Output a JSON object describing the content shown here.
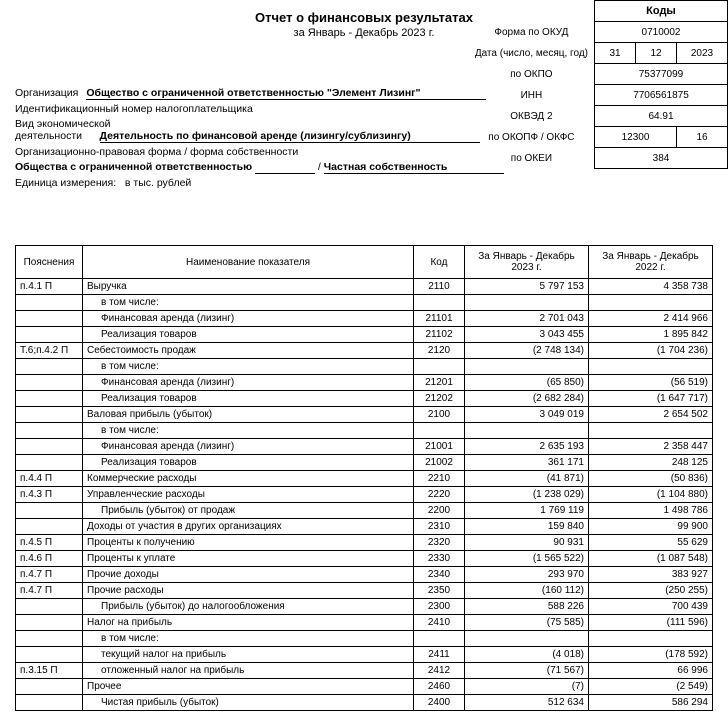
{
  "title": "Отчет о финансовых результатах",
  "subtitle": "за Январь - Декабрь 2023 г.",
  "codes_header": "Коды",
  "labels": {
    "okud": "Форма по ОКУД",
    "date": "Дата (число, месяц, год)",
    "okpo": "по ОКПО",
    "inn": "ИНН",
    "okved": "ОКВЭД 2",
    "okopf": "по ОКОПФ / ОКФС",
    "okei": "по ОКЕИ",
    "org": "Организация",
    "taxid": "Идентификационный номер налогоплательщика",
    "activity": "Вид экономической деятельности",
    "legalform": "Организационно-правовая форма / форма собственности",
    "unit": "Единица измерения:"
  },
  "codes": {
    "okud": "0710002",
    "date_d": "31",
    "date_m": "12",
    "date_y": "2023",
    "okpo": "75377099",
    "inn": "7706561875",
    "okved": "64.91",
    "okopf": "12300",
    "okfs": "16",
    "okei": "384"
  },
  "org_name": "Общество с ограниченной ответственностью \"Элемент Лизинг\"",
  "activity_name": "Деятельность по финансовой аренде (лизингу/сублизингу)",
  "legal_form1": "Общества с ограниченной ответственностью",
  "legal_form2": "Частная собственность",
  "unit_value": "в тыс. рублей",
  "table": {
    "headers": {
      "expl": "Пояснения",
      "name": "Наименование показателя",
      "code": "Код",
      "p2023": "За Январь - Декабрь 2023 г.",
      "p2022": "За Январь - Декабрь 2022 г."
    },
    "rows": [
      {
        "e": "п.4.1 П",
        "n": "Выручка",
        "c": "2110",
        "v1": "5 797 153",
        "v2": "4 358 738",
        "i": 0
      },
      {
        "e": "",
        "n": "в том числе:",
        "c": "",
        "v1": "",
        "v2": "",
        "i": 1
      },
      {
        "e": "",
        "n": "Финансовая аренда (лизинг)",
        "c": "21101",
        "v1": "2 701 043",
        "v2": "2 414 966",
        "i": 1
      },
      {
        "e": "",
        "n": "Реализация товаров",
        "c": "21102",
        "v1": "3 043 455",
        "v2": "1 895 842",
        "i": 1
      },
      {
        "e": "Т.6;п.4.2 П",
        "n": "Себестоимость продаж",
        "c": "2120",
        "v1": "(2 748 134)",
        "v2": "(1 704 236)",
        "i": 0
      },
      {
        "e": "",
        "n": "в том числе:",
        "c": "",
        "v1": "",
        "v2": "",
        "i": 1
      },
      {
        "e": "",
        "n": "Финансовая аренда (лизинг)",
        "c": "21201",
        "v1": "(65 850)",
        "v2": "(56 519)",
        "i": 1
      },
      {
        "e": "",
        "n": "Реализация товаров",
        "c": "21202",
        "v1": "(2 682 284)",
        "v2": "(1 647 717)",
        "i": 1
      },
      {
        "e": "",
        "n": "Валовая прибыль (убыток)",
        "c": "2100",
        "v1": "3 049 019",
        "v2": "2 654 502",
        "i": 0
      },
      {
        "e": "",
        "n": "в том числе:",
        "c": "",
        "v1": "",
        "v2": "",
        "i": 1
      },
      {
        "e": "",
        "n": "Финансовая аренда (лизинг)",
        "c": "21001",
        "v1": "2 635 193",
        "v2": "2 358 447",
        "i": 1
      },
      {
        "e": "",
        "n": "Реализация товаров",
        "c": "21002",
        "v1": "361 171",
        "v2": "248 125",
        "i": 1
      },
      {
        "e": "п.4.4 П",
        "n": "Коммерческие расходы",
        "c": "2210",
        "v1": "(41 871)",
        "v2": "(50 836)",
        "i": 0
      },
      {
        "e": "п.4.3 П",
        "n": "Управленческие расходы",
        "c": "2220",
        "v1": "(1 238 029)",
        "v2": "(1 104 880)",
        "i": 0
      },
      {
        "e": "",
        "n": "Прибыль (убыток) от продаж",
        "c": "2200",
        "v1": "1 769 119",
        "v2": "1 498 786",
        "i": 1
      },
      {
        "e": "",
        "n": "Доходы от участия в других организациях",
        "c": "2310",
        "v1": "159 840",
        "v2": "99 900",
        "i": 0
      },
      {
        "e": "п.4.5 П",
        "n": "Проценты к получению",
        "c": "2320",
        "v1": "90 931",
        "v2": "55 629",
        "i": 0
      },
      {
        "e": "п.4.6 П",
        "n": "Проценты к уплате",
        "c": "2330",
        "v1": "(1 565 522)",
        "v2": "(1 087 548)",
        "i": 0
      },
      {
        "e": "п.4.7 П",
        "n": "Прочие доходы",
        "c": "2340",
        "v1": "293 970",
        "v2": "383 927",
        "i": 0
      },
      {
        "e": "п.4.7 П",
        "n": "Прочие расходы",
        "c": "2350",
        "v1": "(160 112)",
        "v2": "(250 255)",
        "i": 0
      },
      {
        "e": "",
        "n": "Прибыль (убыток) до налогообложения",
        "c": "2300",
        "v1": "588 226",
        "v2": "700 439",
        "i": 1
      },
      {
        "e": "",
        "n": "Налог на прибыль",
        "c": "2410",
        "v1": "(75 585)",
        "v2": "(111 596)",
        "i": 0
      },
      {
        "e": "",
        "n": "в том числе:",
        "c": "",
        "v1": "",
        "v2": "",
        "i": 1
      },
      {
        "e": "",
        "n": "текущий налог на прибыль",
        "c": "2411",
        "v1": "(4 018)",
        "v2": "(178 592)",
        "i": 1
      },
      {
        "e": "п.3.15 П",
        "n": "отложенный налог на прибыль",
        "c": "2412",
        "v1": "(71 567)",
        "v2": "66 996",
        "i": 1
      },
      {
        "e": "",
        "n": "Прочее",
        "c": "2460",
        "v1": "(7)",
        "v2": "(2 549)",
        "i": 0
      },
      {
        "e": "",
        "n": "Чистая прибыль (убыток)",
        "c": "2400",
        "v1": "512 634",
        "v2": "586 294",
        "i": 1
      }
    ]
  }
}
